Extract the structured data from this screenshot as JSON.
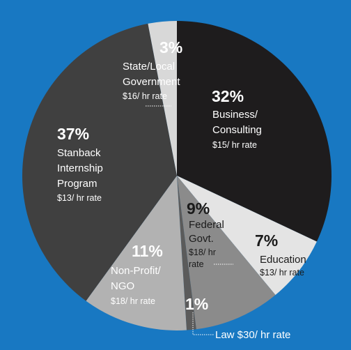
{
  "chart_data": {
    "type": "pie",
    "start": "12 o'clock, clockwise",
    "slices": [
      {
        "pct": 32,
        "pct_label": "32%",
        "label": [
          "Business/",
          "Consulting"
        ],
        "rate": "$15/ hr rate",
        "color": "#1e1c1d"
      },
      {
        "pct": 7,
        "pct_label": "7%",
        "label": [
          "Education"
        ],
        "rate": "$13/ hr rate",
        "color": "#e4e4e4"
      },
      {
        "pct": 9,
        "pct_label": "9%",
        "label": [
          "Federal",
          "Govt."
        ],
        "rate_lines": [
          "$18/ hr",
          "rate"
        ],
        "color": "#8b8b8b"
      },
      {
        "pct": 1,
        "pct_label": "1%",
        "label": [
          "Law $30/ hr rate"
        ],
        "color": "#5b5b5b"
      },
      {
        "pct": 11,
        "pct_label": "11%",
        "label": [
          "Non-Profit/",
          "NGO"
        ],
        "rate": "$18/ hr rate",
        "color": "#b2b2b2"
      },
      {
        "pct": 37,
        "pct_label": "37%",
        "label": [
          "Stanback",
          "Internship",
          "Program"
        ],
        "rate": "$13/ hr rate",
        "color": "#404040"
      },
      {
        "pct": 3,
        "pct_label": "3%",
        "label": [
          "State/Local",
          "Government"
        ],
        "rate": "$16/ hr rate",
        "color": "#d8d8d8"
      }
    ]
  }
}
